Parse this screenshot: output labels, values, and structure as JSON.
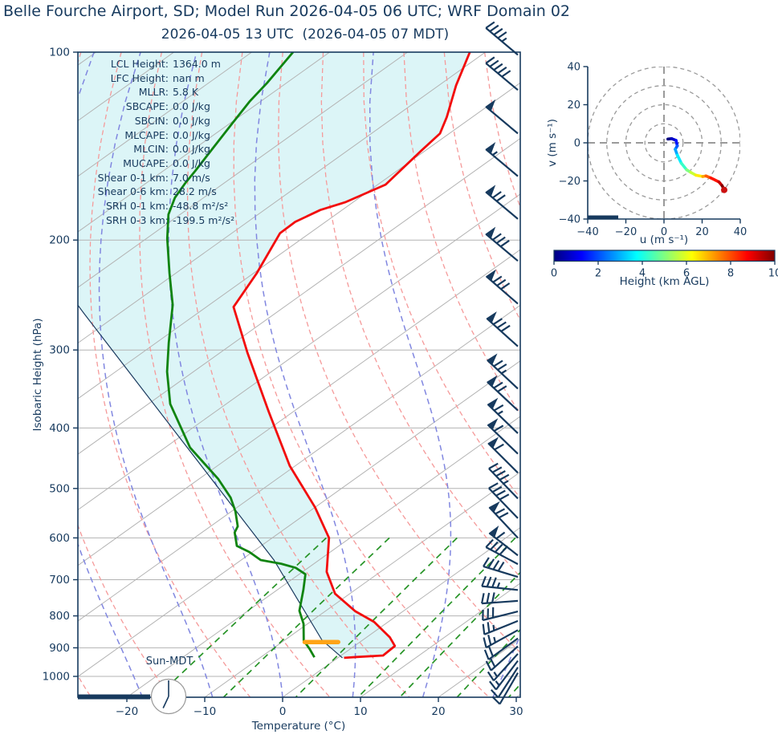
{
  "title": "Belle Fourche Airport, SD; Model Run 2026-04-05 06 UTC; WRF Domain 02",
  "subtitle": "2026-04-05 13 UTC  (2026-04-05 07 MDT)",
  "colors": {
    "navy": "#173a5e",
    "temperature_line": "#f20d0d",
    "dewpoint_line": "#108410",
    "parcel_line": "#1b3a5f",
    "shade_fill": "#dcf5f7",
    "isotherm": "#b3b3b3",
    "isobar": "#b3b3b3",
    "dry_adiabat": "#f59a9a",
    "moist_adiabat": "#8187e0",
    "mixing_ratio": "#279427",
    "lcl_marker": "#ffa417",
    "hodo_grid": "#9a9a9a"
  },
  "skewt": {
    "xlabel": "Temperature (°C)",
    "ylabel": "Isobaric Height (hPa)",
    "x_ticks": [
      -20,
      -10,
      0,
      10,
      20,
      30
    ],
    "y_ticks": [
      100,
      200,
      300,
      400,
      500,
      600,
      700,
      800,
      900,
      1000
    ],
    "sun_label": "Sun-MDT",
    "clock_hands_deg": [
      0,
      205
    ],
    "stats": [
      {
        "label": "LCL Height:",
        "value": "1364.0 m"
      },
      {
        "label": "LFC Height:",
        "value": "nan m"
      },
      {
        "label": "MLLR:",
        "value": "5.8 K"
      },
      {
        "label": "SBCAPE:",
        "value": "0.0 J/kg"
      },
      {
        "label": "SBCIN:",
        "value": "0.0 J/kg"
      },
      {
        "label": "MLCAPE:",
        "value": "0.0 J/kg"
      },
      {
        "label": "MLCIN:",
        "value": "0.0 J/kg"
      },
      {
        "label": "MUCAPE:",
        "value": "0.0 J/kg"
      },
      {
        "label": "Shear 0-1 km:",
        "value": "7.0 m/s"
      },
      {
        "label": "Shear 0-6 km:",
        "value": "28.2 m/s"
      },
      {
        "label": "SRH 0-1 km:",
        "value": "-48.8 m²/s²"
      },
      {
        "label": "SRH 0-3 km:",
        "value": "-199.5 m²/s²"
      }
    ],
    "lcl_bar": {
      "p": 881,
      "t_min": -7.1,
      "t_max": -2.8
    },
    "ground_bar": {
      "t_min": -26.3,
      "t_max": -17.0
    }
  },
  "hodograph": {
    "xlabel": "u (m s⁻¹)",
    "ylabel": "v (m s⁻¹)",
    "ticks": [
      -40,
      -20,
      0,
      20,
      40
    ],
    "ring_radii": [
      10,
      20,
      30,
      40
    ],
    "bar": {
      "u_min": -40,
      "u_max": -24
    }
  },
  "colorbar": {
    "label": "Height (km AGL)",
    "ticks": [
      0,
      2,
      4,
      6,
      8,
      10
    ],
    "min": 0,
    "max": 10
  },
  "chart_data": {
    "type": "line",
    "description": "Skew-T log-P sounding (temperature, dewpoint, parcel profiles vs pressure) with wind barbs and height-colored hodograph",
    "pressure_range_hPa": [
      100,
      1080
    ],
    "temperature_axis_range_C": [
      -26.3,
      30.5
    ],
    "temperature_profile": [
      [
        100,
        -92.0
      ],
      [
        113,
        -87.8
      ],
      [
        127,
        -83.3
      ],
      [
        135,
        -81.2
      ],
      [
        144,
        -80.5
      ],
      [
        163,
        -79.0
      ],
      [
        174,
        -81.0
      ],
      [
        179,
        -82.8
      ],
      [
        187,
        -83.9
      ],
      [
        195,
        -83.8
      ],
      [
        226,
        -79.6
      ],
      [
        256,
        -76.5
      ],
      [
        303,
        -66.5
      ],
      [
        377,
        -53.1
      ],
      [
        460,
        -40.7
      ],
      [
        536,
        -30.0
      ],
      [
        600,
        -22.7
      ],
      [
        680,
        -16.9
      ],
      [
        737,
        -11.9
      ],
      [
        786,
        -6.2
      ],
      [
        818,
        -1.8
      ],
      [
        866,
        3.0
      ],
      [
        894,
        5.2
      ],
      [
        926,
        5.4
      ],
      [
        931,
        2.3
      ],
      [
        934,
        0.8
      ]
    ],
    "dewpoint_profile": [
      [
        100,
        -114.7
      ],
      [
        112,
        -112.5
      ],
      [
        120,
        -111.4
      ],
      [
        130,
        -109.7
      ],
      [
        142,
        -107.8
      ],
      [
        155,
        -105.9
      ],
      [
        162,
        -105.0
      ],
      [
        171,
        -103.7
      ],
      [
        182,
        -101.5
      ],
      [
        199,
        -97.3
      ],
      [
        226,
        -90.8
      ],
      [
        254,
        -84.7
      ],
      [
        292,
        -78.4
      ],
      [
        325,
        -73.4
      ],
      [
        366,
        -67.2
      ],
      [
        430,
        -56.8
      ],
      [
        460,
        -51.4
      ],
      [
        483,
        -47.5
      ],
      [
        517,
        -42.6
      ],
      [
        544,
        -39.5
      ],
      [
        575,
        -36.5
      ],
      [
        588,
        -35.8
      ],
      [
        618,
        -33.1
      ],
      [
        632,
        -30.4
      ],
      [
        651,
        -27.5
      ],
      [
        660,
        -24.2
      ],
      [
        670,
        -21.6
      ],
      [
        686,
        -19.2
      ],
      [
        726,
        -16.7
      ],
      [
        785,
        -13.4
      ],
      [
        824,
        -10.5
      ],
      [
        876,
        -7.5
      ],
      [
        904,
        -5.2
      ],
      [
        932,
        -3.1
      ]
    ],
    "parcel_profile": [
      [
        934,
        0.6
      ],
      [
        875,
        -5.2
      ],
      [
        651,
        -25.8
      ],
      [
        413,
        -60.2
      ],
      [
        262,
        -94.6
      ],
      [
        254,
        -96.9
      ]
    ],
    "wind_barbs": [
      [
        101,
        0,
        4,
        1,
        140
      ],
      [
        115,
        0,
        5,
        0,
        140
      ],
      [
        135,
        1,
        0,
        0,
        140
      ],
      [
        158,
        1,
        0,
        1,
        140
      ],
      [
        185,
        1,
        2,
        0,
        140
      ],
      [
        216,
        1,
        3,
        0,
        140
      ],
      [
        253,
        1,
        3,
        0,
        139
      ],
      [
        296,
        1,
        3,
        0,
        138
      ],
      [
        346,
        1,
        2,
        1,
        137
      ],
      [
        375,
        1,
        2,
        0,
        137
      ],
      [
        408,
        1,
        1,
        1,
        136
      ],
      [
        440,
        1,
        1,
        0,
        136
      ],
      [
        472,
        1,
        1,
        0,
        135
      ],
      [
        519,
        0,
        4,
        1,
        134
      ],
      [
        558,
        0,
        4,
        0,
        134
      ],
      [
        600,
        1,
        2,
        0,
        133
      ],
      [
        640,
        1,
        1,
        0,
        142
      ],
      [
        661,
        0,
        4,
        0,
        152
      ],
      [
        693,
        0,
        4,
        0,
        163
      ],
      [
        727,
        0,
        3,
        1,
        174
      ],
      [
        757,
        0,
        3,
        0,
        184
      ],
      [
        787,
        0,
        3,
        0,
        194
      ],
      [
        815,
        0,
        2,
        1,
        202
      ],
      [
        843,
        0,
        2,
        1,
        209
      ],
      [
        869,
        0,
        2,
        0,
        216
      ],
      [
        895,
        0,
        2,
        0,
        222
      ],
      [
        920,
        0,
        1,
        1,
        228
      ],
      [
        944,
        0,
        1,
        1,
        233
      ],
      [
        967,
        0,
        1,
        0,
        237
      ],
      [
        987,
        0,
        1,
        0,
        240
      ]
    ],
    "hodograph_uv": [
      [
        2,
        2
      ],
      [
        4,
        2.2
      ],
      [
        6.3,
        1.3
      ],
      [
        7,
        -1.6
      ],
      [
        5.9,
        -3.4
      ],
      [
        7,
        -6.4
      ],
      [
        9.1,
        -10.7
      ],
      [
        11.9,
        -14.2
      ],
      [
        14,
        -15.5
      ],
      [
        16.8,
        -17.0
      ],
      [
        20.3,
        -17.7
      ],
      [
        22,
        -17.4
      ],
      [
        24.5,
        -18.4
      ],
      [
        28.8,
        -20.5
      ],
      [
        30.5,
        -22.5
      ],
      [
        31.6,
        -24.7
      ]
    ],
    "hodograph_height_range_km": [
      0,
      10
    ],
    "mixing_ratio_lines_g_kg": [
      1,
      2,
      4,
      7,
      10,
      16,
      24
    ],
    "dry_adiabats_theta_C": {
      "from": -30,
      "to": 90,
      "step": 10
    },
    "moist_adiabats_start_C": {
      "from": -63,
      "to": 36,
      "step": 9
    },
    "isotherms_C": {
      "from": -150,
      "to": 40,
      "step": 10
    }
  }
}
